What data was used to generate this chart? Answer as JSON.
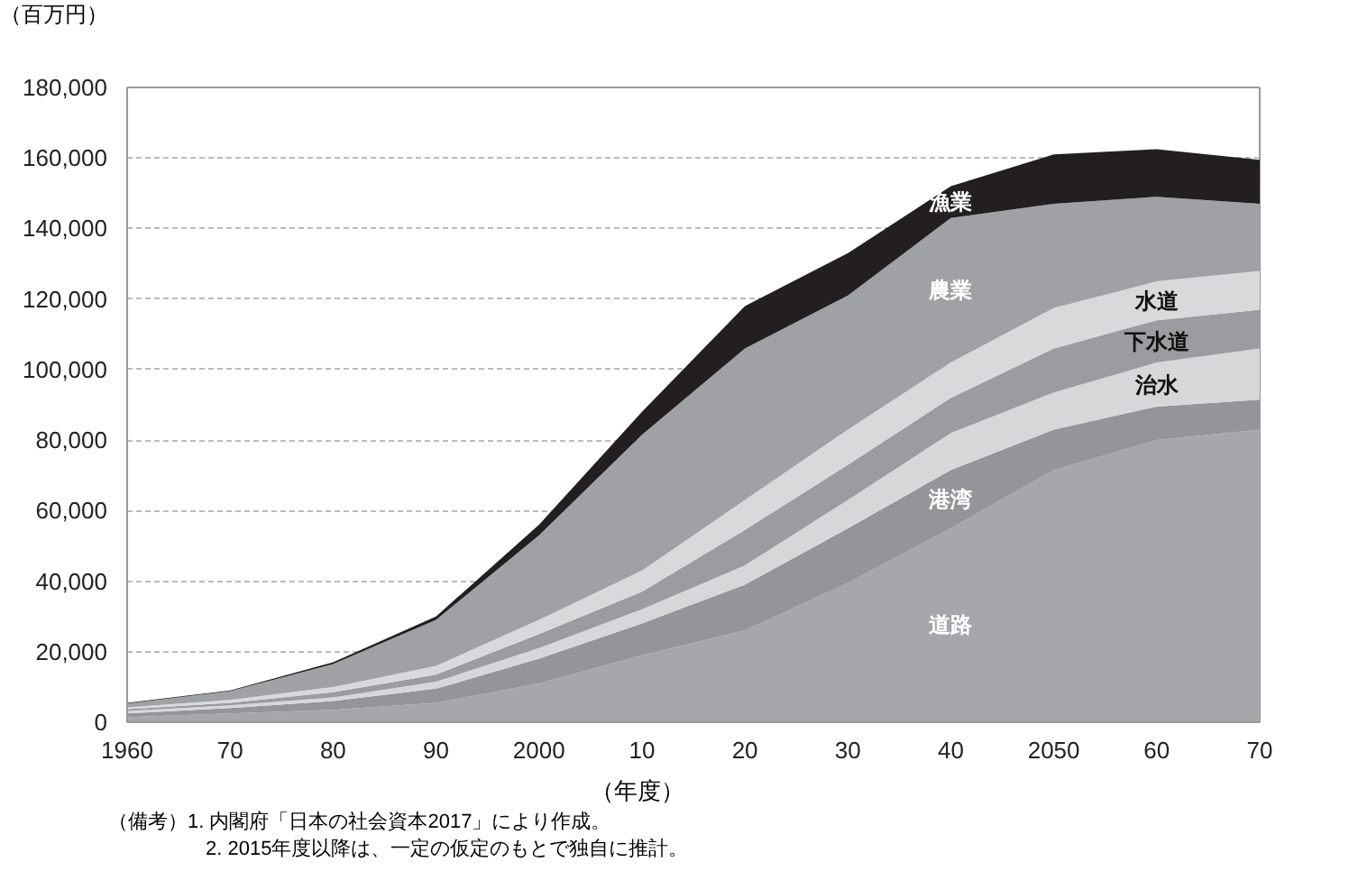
{
  "chart_data": {
    "type": "area",
    "stacked": true,
    "ylabel": "（百万円）",
    "xlabel": "（年度）",
    "x": [
      1960,
      1970,
      1980,
      1990,
      2000,
      2010,
      2020,
      2030,
      2040,
      2050,
      2060,
      2070
    ],
    "series": [
      {
        "name": "道路",
        "color": "#a6a7aa",
        "values": [
          1500,
          2500,
          3500,
          5500,
          11000,
          19000,
          26000,
          39500,
          55000,
          71500,
          80000,
          83000
        ]
      },
      {
        "name": "港湾",
        "color": "#939598",
        "values": [
          1000,
          1500,
          2500,
          4000,
          7000,
          9000,
          13000,
          15500,
          16500,
          11500,
          9500,
          8500
        ]
      },
      {
        "name": "治水",
        "color": "#d6d7d9",
        "values": [
          700,
          800,
          1000,
          2000,
          3000,
          4000,
          5500,
          8000,
          10500,
          10500,
          12500,
          14500
        ]
      },
      {
        "name": "下水道",
        "color": "#9b9c9f",
        "values": [
          500,
          700,
          1500,
          2000,
          4000,
          5000,
          10000,
          10000,
          10000,
          12500,
          12000,
          11000
        ]
      },
      {
        "name": "水道",
        "color": "#d8d9db",
        "values": [
          500,
          800,
          1500,
          2500,
          4000,
          6000,
          8500,
          10000,
          10000,
          11500,
          11000,
          11000
        ]
      },
      {
        "name": "農業",
        "color": "#a0a1a4",
        "values": [
          1100,
          2500,
          6500,
          13000,
          24000,
          38500,
          43000,
          38000,
          41000,
          29500,
          24000,
          19000
        ]
      },
      {
        "name": "漁業",
        "color": "#231f20",
        "values": [
          200,
          200,
          500,
          1000,
          3000,
          6500,
          12000,
          12000,
          9000,
          14000,
          13500,
          12500
        ]
      }
    ],
    "xlim": [
      1960,
      2070
    ],
    "ylim": [
      0,
      180000
    ],
    "xticks": [
      1960,
      {
        "value": 1970,
        "label": "70"
      },
      {
        "value": 1980,
        "label": "80"
      },
      {
        "value": 1990,
        "label": "90"
      },
      2000,
      {
        "value": 2010,
        "label": "10"
      },
      {
        "value": 2020,
        "label": "20"
      },
      {
        "value": 2030,
        "label": "30"
      },
      {
        "value": 2040,
        "label": "40"
      },
      2050,
      {
        "value": 2060,
        "label": "60"
      },
      {
        "value": 2070,
        "label": "70"
      }
    ],
    "yticks": [
      {
        "value": 0,
        "label": "0"
      },
      {
        "value": 20000,
        "label": "20,000"
      },
      {
        "value": 40000,
        "label": "40,000"
      },
      {
        "value": 60000,
        "label": "60,000"
      },
      {
        "value": 80000,
        "label": "80,000"
      },
      {
        "value": 100000,
        "label": "100,000"
      },
      {
        "value": 120000,
        "label": "120,000"
      },
      {
        "value": 140000,
        "label": "140,000"
      },
      {
        "value": 160000,
        "label": "160,000"
      },
      {
        "value": 180000,
        "label": "180,000"
      }
    ],
    "grid": "y",
    "annotations": [
      "（備考）1. 内閣府「日本の社会資本2017」により作成。",
      "2. 2015年度以降は、一定の仮定のもとで独自に推計。"
    ]
  }
}
